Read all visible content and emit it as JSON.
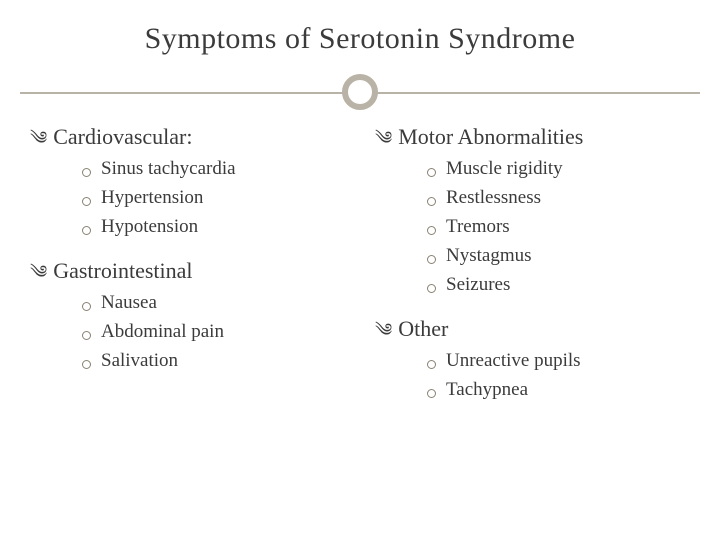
{
  "title": "Symptoms of Serotonin Syndrome",
  "colors": {
    "background": "#ffffff",
    "text": "#3b3b3b",
    "accent": "#b9b2a6",
    "item_bullet_border": "#898272"
  },
  "typography": {
    "title_fontsize": 30,
    "category_fontsize": 22,
    "item_fontsize": 19,
    "font_family": "Georgia, serif"
  },
  "layout": {
    "columns": 2,
    "slide_width": 720,
    "slide_height": 540
  },
  "left": {
    "categories": [
      {
        "title": "Cardiovascular:",
        "items": [
          "Sinus tachycardia",
          "Hypertension",
          "Hypotension"
        ]
      },
      {
        "title": "Gastrointestinal",
        "items": [
          "Nausea",
          "Abdominal pain",
          "Salivation"
        ]
      }
    ]
  },
  "right": {
    "categories": [
      {
        "title": "Motor Abnormalities",
        "items": [
          "Muscle rigidity",
          "Restlessness",
          "Tremors",
          "Nystagmus",
          "Seizures"
        ]
      },
      {
        "title": "Other",
        "items": [
          "Unreactive pupils",
          "Tachypnea"
        ]
      }
    ]
  }
}
